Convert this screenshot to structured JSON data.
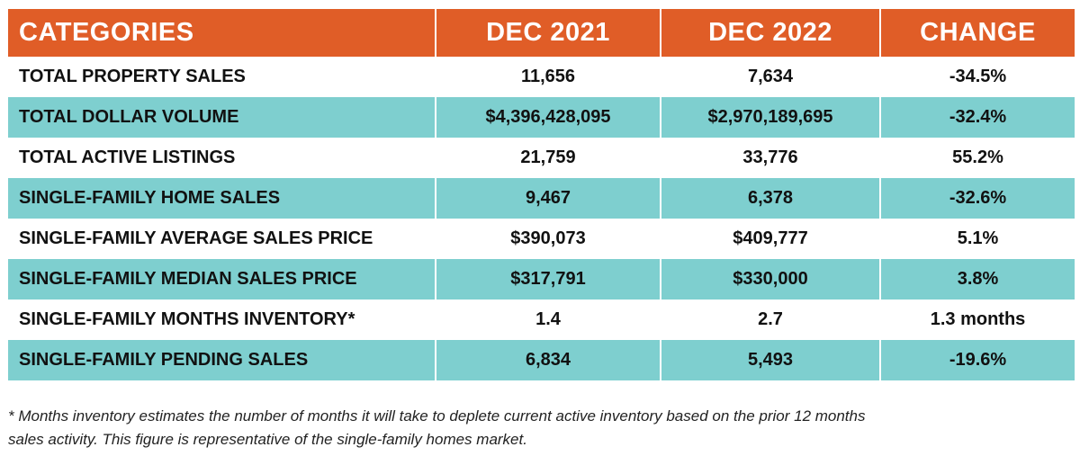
{
  "table": {
    "headers": [
      "CATEGORIES",
      "DEC 2021",
      "DEC 2022",
      "CHANGE"
    ],
    "rows": [
      [
        "TOTAL PROPERTY SALES",
        "11,656",
        "7,634",
        "-34.5%"
      ],
      [
        "TOTAL DOLLAR VOLUME",
        "$4,396,428,095",
        "$2,970,189,695",
        "-32.4%"
      ],
      [
        "TOTAL ACTIVE LISTINGS",
        "21,759",
        "33,776",
        "55.2%"
      ],
      [
        "SINGLE-FAMILY HOME SALES",
        "9,467",
        "6,378",
        "-32.6%"
      ],
      [
        "SINGLE-FAMILY AVERAGE SALES PRICE",
        "$390,073",
        "$409,777",
        "5.1%"
      ],
      [
        "SINGLE-FAMILY MEDIAN SALES PRICE",
        "$317,791",
        "$330,000",
        "3.8%"
      ],
      [
        "SINGLE-FAMILY MONTHS INVENTORY*",
        "1.4",
        "2.7",
        "1.3 months"
      ],
      [
        "SINGLE-FAMILY PENDING SALES",
        "6,834",
        "5,493",
        "-19.6%"
      ]
    ]
  },
  "footnote": {
    "line1": "* Months inventory estimates the number of months it will take to deplete current active inventory based on the prior 12 months",
    "line2": "sales activity. This figure is representative of the single-family homes market."
  },
  "colors": {
    "header_bg": "#e05d27",
    "shaded_row_bg": "#7ecfcf",
    "text": "#111111"
  }
}
